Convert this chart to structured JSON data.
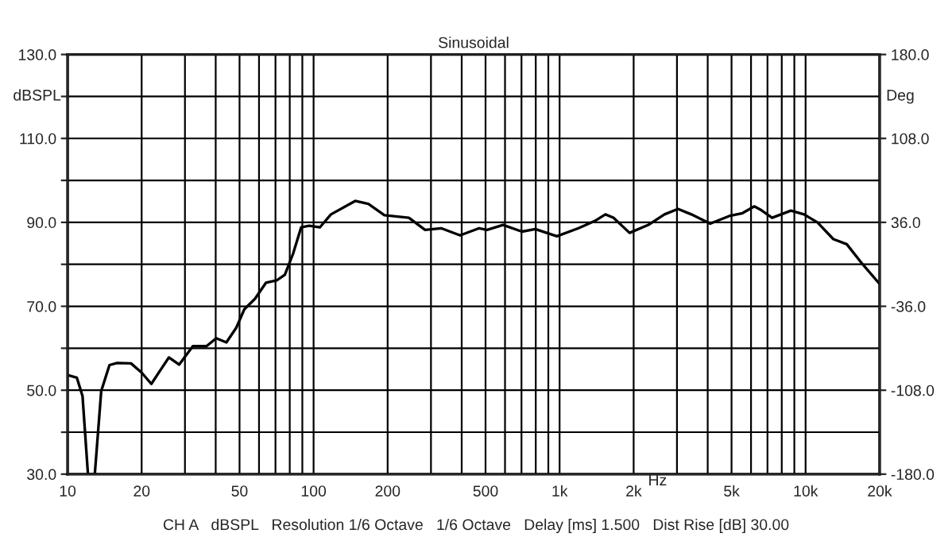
{
  "chart_data": {
    "type": "line",
    "title": "Sinusoidal",
    "xlabel": "Hz",
    "ylabel": "dBSPL",
    "y2label": "Deg",
    "annotations": [
      "CH A   dBSPL   Resolution 1/6 Octave   1/6 Octave   Delay [ms] 1.500   Dist Rise [dB] 30.00"
    ],
    "log": "x",
    "grid": true,
    "legend": false,
    "marker": "none",
    "line_style": "solid",
    "xlim": [
      10,
      20000
    ],
    "xticks": [
      10,
      20,
      {
        "value": 30,
        "label": null
      },
      {
        "value": 40,
        "label": null
      },
      50,
      {
        "value": 60,
        "label": null
      },
      {
        "value": 70,
        "label": null
      },
      {
        "value": 80,
        "label": null
      },
      {
        "value": 90,
        "label": null
      },
      100,
      200,
      {
        "value": 300,
        "label": null
      },
      {
        "value": 400,
        "label": null
      },
      500,
      {
        "value": 600,
        "label": null
      },
      {
        "value": 700,
        "label": null
      },
      {
        "value": 800,
        "label": null
      },
      {
        "value": 900,
        "label": null
      },
      {
        "value": 1000,
        "label": "1k"
      },
      {
        "value": 2000,
        "label": "2k"
      },
      {
        "value": 3000,
        "label": null
      },
      {
        "value": 4000,
        "label": null
      },
      {
        "value": 5000,
        "label": "5k"
      },
      {
        "value": 6000,
        "label": null
      },
      {
        "value": 7000,
        "label": null
      },
      {
        "value": 8000,
        "label": null
      },
      {
        "value": 9000,
        "label": null
      },
      {
        "value": 10000,
        "label": "10k"
      },
      {
        "value": 20000,
        "label": "20k"
      }
    ],
    "ylim": [
      30,
      130
    ],
    "yticks": [
      {
        "value": 30,
        "label": "30.0"
      },
      {
        "value": 40,
        "label": null
      },
      {
        "value": 50,
        "label": "50.0"
      },
      {
        "value": 60,
        "label": null
      },
      {
        "value": 70,
        "label": "70.0"
      },
      {
        "value": 80,
        "label": null
      },
      {
        "value": 90,
        "label": "90.0"
      },
      {
        "value": 100,
        "label": null
      },
      {
        "value": 110,
        "label": "110.0"
      },
      {
        "value": 120,
        "label": null
      },
      {
        "value": 130,
        "label": "130.0"
      }
    ],
    "y2lim": [
      -180,
      180
    ],
    "y2ticks": [
      {
        "value": -180,
        "label": "-180.0"
      },
      {
        "value": -108,
        "label": "-108.0"
      },
      {
        "value": -36,
        "label": "-36.0"
      },
      {
        "value": 36,
        "label": "36.0"
      },
      {
        "value": 108,
        "label": "108.0"
      },
      {
        "value": 180,
        "label": "180.0"
      }
    ],
    "series": [
      {
        "color": "#000000",
        "x": [
          10,
          10.9,
          11.5,
          12.1,
          12.9,
          13.7,
          14.8,
          15.9,
          18.1,
          20,
          21.9,
          23.9,
          25.8,
          28.4,
          32.3,
          36.7,
          40.2,
          44.2,
          48.5,
          52.3,
          57.8,
          64,
          70.8,
          76.4,
          82.5,
          89,
          96,
          106,
          117.6,
          147.6,
          167,
          194,
          244,
          284,
          330,
          394,
          471,
          507,
          589,
          703,
          797,
          975,
          1193,
          1387,
          1535,
          1655,
          1925,
          2296,
          2668,
          3030,
          3433,
          4095,
          4887,
          5539,
          6187,
          6608,
          7310,
          8712,
          9860,
          11170,
          12970,
          14700,
          17060,
          20000
        ],
        "values": [
          53.6,
          53,
          48.6,
          30,
          30,
          49.8,
          56,
          56.5,
          56.4,
          54.2,
          51.5,
          54.9,
          57.8,
          56.1,
          60.5,
          60.5,
          62.4,
          61.4,
          64.9,
          69.3,
          71.8,
          75.6,
          76.2,
          77.5,
          82.5,
          88.8,
          89.2,
          88.8,
          91.9,
          95.1,
          94.4,
          91.7,
          91.1,
          88.2,
          88.6,
          86.9,
          88.6,
          88.2,
          89.4,
          87.8,
          88.4,
          86.7,
          88.6,
          90.3,
          91.9,
          91.1,
          87.5,
          89.4,
          91.9,
          93.2,
          91.9,
          89.7,
          91.5,
          92.2,
          93.8,
          92.9,
          91.1,
          92.8,
          91.9,
          90,
          86,
          84.8,
          80,
          75.3
        ]
      }
    ]
  }
}
